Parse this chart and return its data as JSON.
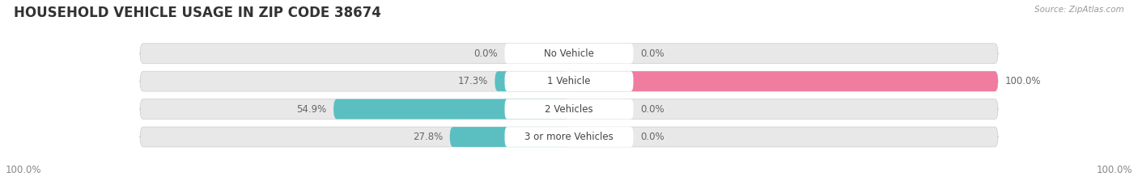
{
  "title": "HOUSEHOLD VEHICLE USAGE IN ZIP CODE 38674",
  "source": "Source: ZipAtlas.com",
  "categories": [
    "No Vehicle",
    "1 Vehicle",
    "2 Vehicles",
    "3 or more Vehicles"
  ],
  "owner_values": [
    0.0,
    17.3,
    54.9,
    27.8
  ],
  "renter_values": [
    0.0,
    100.0,
    0.0,
    0.0
  ],
  "owner_color": "#5bbfc2",
  "renter_color": "#f07ca0",
  "bar_bg_color": "#e8e8e8",
  "bar_height": 0.72,
  "title_fontsize": 12,
  "label_fontsize": 8.5,
  "source_fontsize": 7.5,
  "legend_fontsize": 9,
  "left_label": "100.0%",
  "right_label": "100.0%"
}
